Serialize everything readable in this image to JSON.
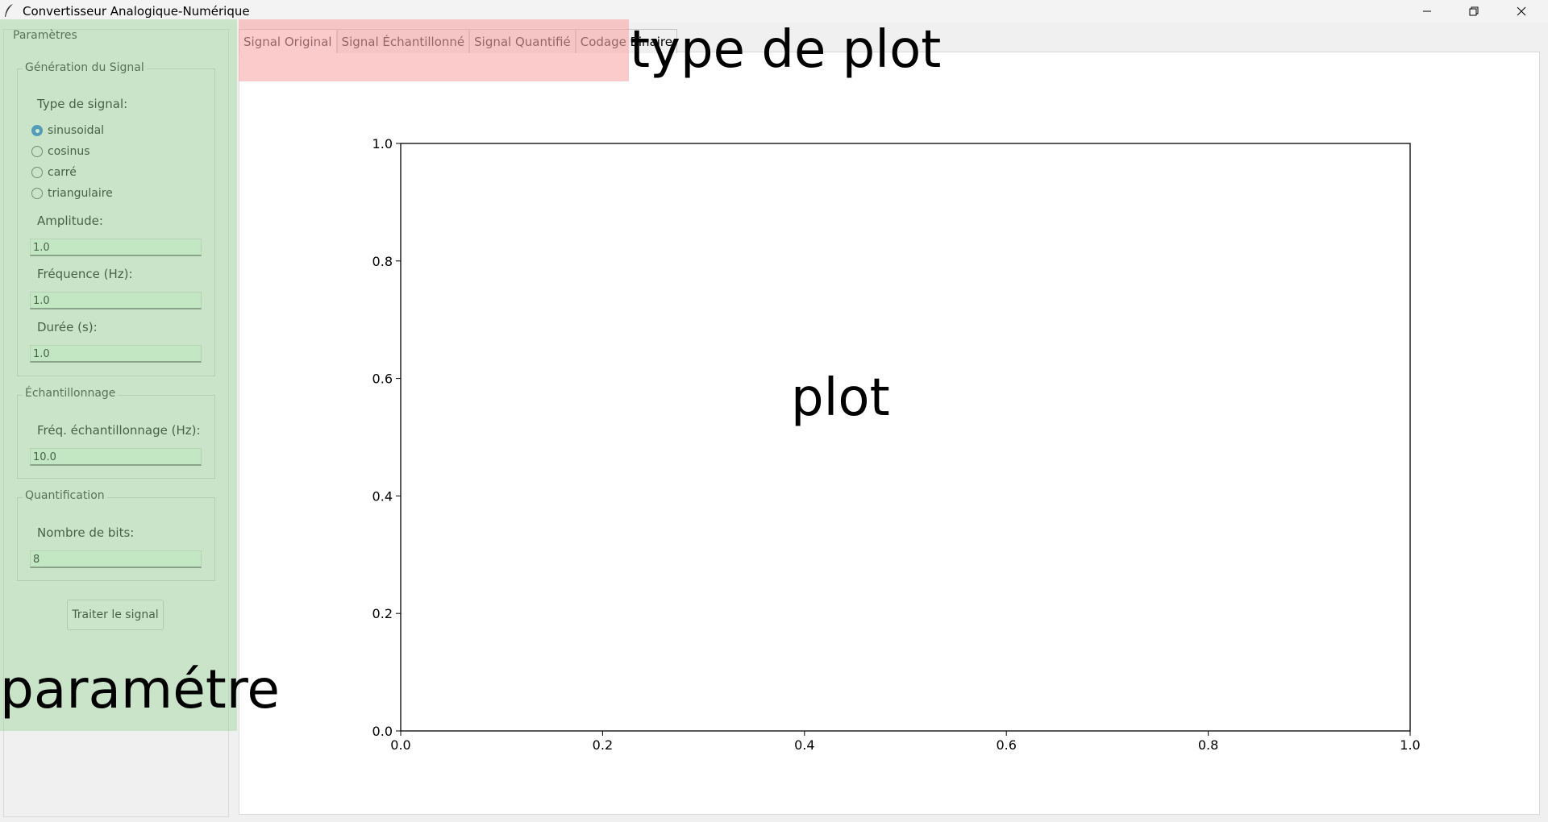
{
  "window": {
    "title": "Convertisseur Analogique-Numérique",
    "controls": [
      "minimize-icon",
      "restore-icon",
      "close-icon"
    ]
  },
  "params": {
    "frame_title": "Paramètres",
    "generation": {
      "title": "Génération du Signal",
      "signal_type_label": "Type de signal:",
      "options": [
        "sinusoidal",
        "cosinus",
        "carré",
        "triangulaire"
      ],
      "selected": "sinusoidal",
      "amplitude_label": "Amplitude:",
      "amplitude_value": "1.0",
      "frequency_label": "Fréquence (Hz):",
      "frequency_value": "1.0",
      "duration_label": "Durée (s):",
      "duration_value": "1.0"
    },
    "sampling": {
      "title": "Échantillonnage",
      "freq_label": "Fréq. échantillonnage (Hz):",
      "freq_value": "10.0"
    },
    "quantization": {
      "title": "Quantification",
      "bits_label": "Nombre de bits:",
      "bits_value": "8"
    },
    "process_button": "Traiter le signal"
  },
  "tabs": [
    "Signal Original",
    "Signal Échantillonné",
    "Signal Quantifié",
    "Codage Binaire"
  ],
  "active_tab": "Signal Original",
  "annotations": {
    "tabs_note": "type de plot",
    "plot_note": "plot",
    "params_note": "paramétre"
  },
  "colors": {
    "params_highlight": "#9cd59c",
    "tabs_highlight": "#f8a8a8",
    "radio_accent": "#1a6fd1"
  },
  "chart_data": {
    "type": "line",
    "series": [],
    "xlim": [
      0.0,
      1.0
    ],
    "ylim": [
      0.0,
      1.0
    ],
    "xticks": [
      "0.0",
      "0.2",
      "0.4",
      "0.6",
      "0.8",
      "1.0"
    ],
    "yticks": [
      "0.0",
      "0.2",
      "0.4",
      "0.6",
      "0.8",
      "1.0"
    ],
    "grid": false
  }
}
